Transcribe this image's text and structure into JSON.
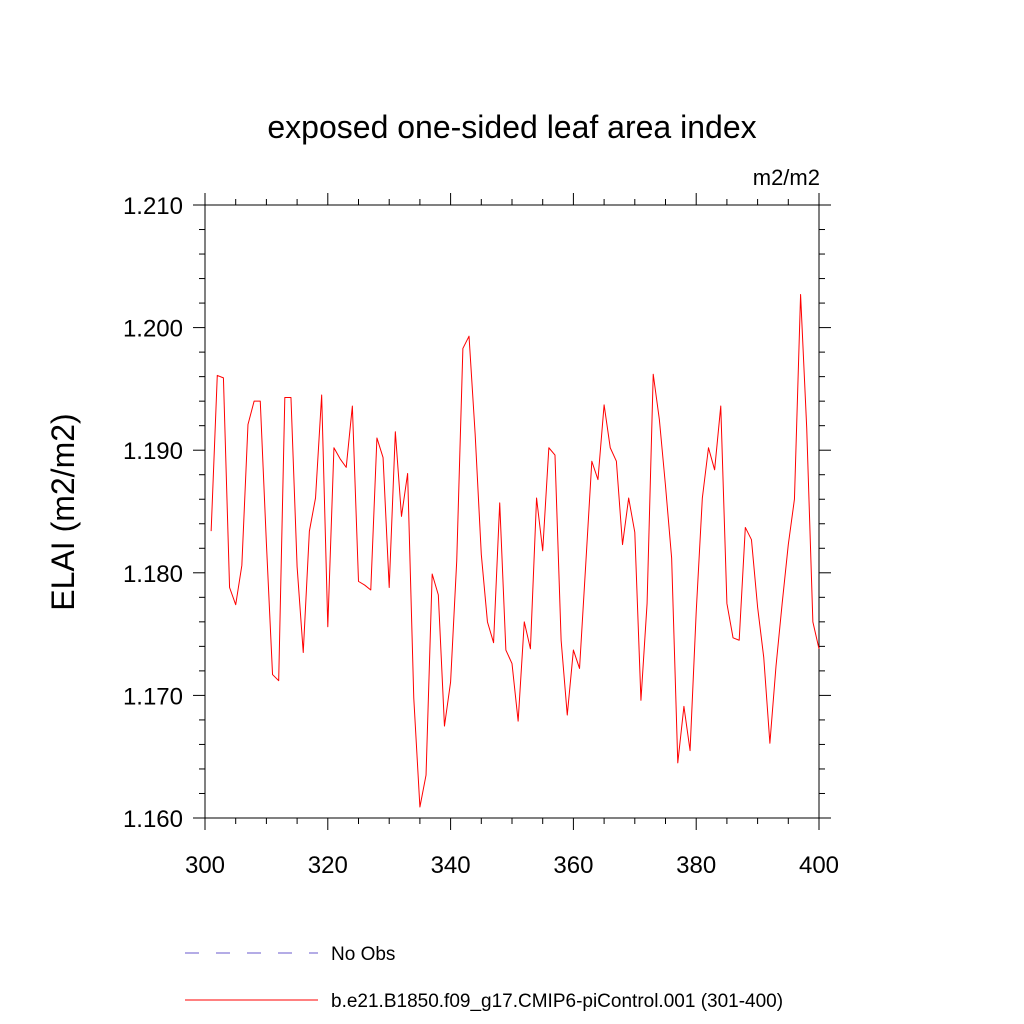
{
  "chart_data": {
    "type": "line",
    "title": "exposed one-sided leaf area index",
    "units_label": "m2/m2",
    "ylabel": "ELAI  (m2/m2)",
    "xlabel": "",
    "xlim": [
      300,
      400
    ],
    "ylim": [
      1.16,
      1.21
    ],
    "x_ticks": [
      300,
      320,
      340,
      360,
      380,
      400
    ],
    "x_tick_labels": [
      "300",
      "320",
      "340",
      "360",
      "380",
      "400"
    ],
    "y_ticks": [
      1.16,
      1.17,
      1.18,
      1.19,
      1.2,
      1.21
    ],
    "y_tick_labels": [
      "1.160",
      "1.170",
      "1.180",
      "1.190",
      "1.200",
      "1.210"
    ],
    "grid": false,
    "legend_position": "bottom",
    "series": [
      {
        "name": "b.e21.B1850.f09_g17.CMIP6-piControl.001 (301-400)",
        "color": "#ff0000",
        "style": "solid",
        "x": [
          301,
          302,
          303,
          304,
          305,
          306,
          307,
          308,
          309,
          310,
          311,
          312,
          313,
          314,
          315,
          316,
          317,
          318,
          319,
          320,
          321,
          322,
          323,
          324,
          325,
          326,
          327,
          328,
          329,
          330,
          331,
          332,
          333,
          334,
          335,
          336,
          337,
          338,
          339,
          340,
          341,
          342,
          343,
          344,
          345,
          346,
          347,
          348,
          349,
          350,
          351,
          352,
          353,
          354,
          355,
          356,
          357,
          358,
          359,
          360,
          361,
          362,
          363,
          364,
          365,
          366,
          367,
          368,
          369,
          370,
          371,
          372,
          373,
          374,
          375,
          376,
          377,
          378,
          379,
          380,
          381,
          382,
          383,
          384,
          385,
          386,
          387,
          388,
          389,
          390,
          391,
          392,
          393,
          394,
          395,
          396,
          397,
          398,
          399,
          400
        ],
        "values": [
          1.1834,
          1.1961,
          1.1959,
          1.1788,
          1.1774,
          1.1806,
          1.1921,
          1.194,
          1.194,
          1.1824,
          1.1717,
          1.1712,
          1.1943,
          1.1943,
          1.1805,
          1.1735,
          1.1834,
          1.1861,
          1.1945,
          1.1756,
          1.1902,
          1.1893,
          1.1886,
          1.1936,
          1.1793,
          1.179,
          1.1786,
          1.191,
          1.1894,
          1.1788,
          1.1915,
          1.1846,
          1.1881,
          1.1698,
          1.1609,
          1.1635,
          1.1799,
          1.1782,
          1.1675,
          1.1711,
          1.181,
          1.1983,
          1.1993,
          1.1913,
          1.1815,
          1.176,
          1.1743,
          1.1857,
          1.1737,
          1.1726,
          1.1679,
          1.176,
          1.1738,
          1.1861,
          1.1818,
          1.1902,
          1.1896,
          1.1745,
          1.1684,
          1.1737,
          1.1722,
          1.1806,
          1.1891,
          1.1876,
          1.1937,
          1.1902,
          1.1891,
          1.1823,
          1.1861,
          1.1833,
          1.1696,
          1.1775,
          1.1962,
          1.1925,
          1.1871,
          1.1812,
          1.1645,
          1.1691,
          1.1655,
          1.1768,
          1.1861,
          1.1902,
          1.1884,
          1.1936,
          1.1775,
          1.1747,
          1.1745,
          1.1837,
          1.1827,
          1.1772,
          1.1731,
          1.1661,
          1.1724,
          1.1775,
          1.1823,
          1.186,
          1.2027,
          1.1918,
          1.176,
          1.1738
        ]
      }
    ]
  },
  "legend": [
    {
      "label": "No Obs",
      "color": "#6a5acd",
      "style": "dashed"
    },
    {
      "label": "b.e21.B1850.f09_g17.CMIP6-piControl.001 (301-400)",
      "color": "#ff0000",
      "style": "solid"
    }
  ]
}
